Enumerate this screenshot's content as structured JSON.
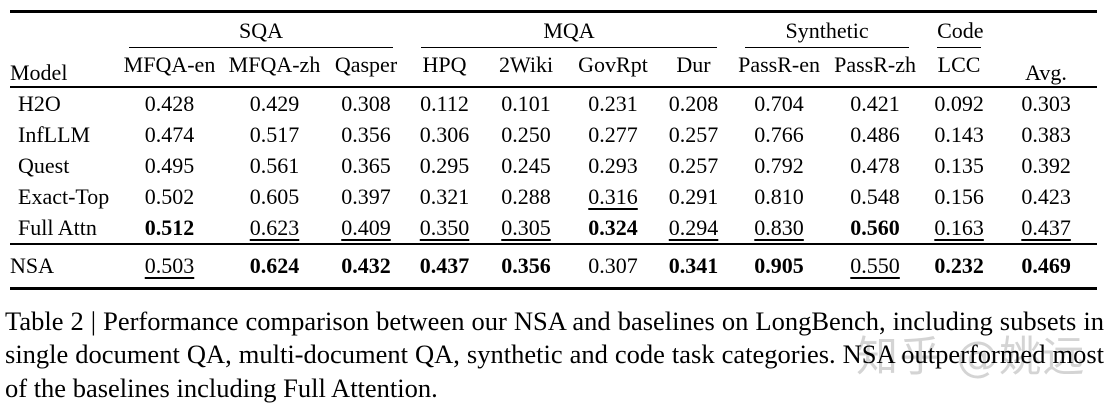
{
  "colors": {
    "text": "#000000",
    "background": "#ffffff",
    "watermark": "#bbbbbb"
  },
  "table": {
    "model_header": "Model",
    "avg_header": "Avg.",
    "groups": [
      {
        "label": "SQA",
        "span": 3
      },
      {
        "label": "MQA",
        "span": 4
      },
      {
        "label": "Synthetic",
        "span": 2
      },
      {
        "label": "Code",
        "span": 1
      }
    ],
    "columns": [
      "MFQA-en",
      "MFQA-zh",
      "Qasper",
      "HPQ",
      "2Wiki",
      "GovRpt",
      "Dur",
      "PassR-en",
      "PassR-zh",
      "LCC"
    ],
    "rows": [
      {
        "model": "H2O",
        "values": [
          "0.428",
          "0.429",
          "0.308",
          "0.112",
          "0.101",
          "0.231",
          "0.208",
          "0.704",
          "0.421",
          "0.092",
          "0.303"
        ],
        "styles": [
          "",
          "",
          "",
          "",
          "",
          "",
          "",
          "",
          "",
          "",
          ""
        ]
      },
      {
        "model": "InfLLM",
        "values": [
          "0.474",
          "0.517",
          "0.356",
          "0.306",
          "0.250",
          "0.277",
          "0.257",
          "0.766",
          "0.486",
          "0.143",
          "0.383"
        ],
        "styles": [
          "",
          "",
          "",
          "",
          "",
          "",
          "",
          "",
          "",
          "",
          ""
        ]
      },
      {
        "model": "Quest",
        "values": [
          "0.495",
          "0.561",
          "0.365",
          "0.295",
          "0.245",
          "0.293",
          "0.257",
          "0.792",
          "0.478",
          "0.135",
          "0.392"
        ],
        "styles": [
          "",
          "",
          "",
          "",
          "",
          "",
          "",
          "",
          "",
          "",
          ""
        ]
      },
      {
        "model": "Exact-Top",
        "values": [
          "0.502",
          "0.605",
          "0.397",
          "0.321",
          "0.288",
          "0.316",
          "0.291",
          "0.810",
          "0.548",
          "0.156",
          "0.423"
        ],
        "styles": [
          "",
          "",
          "",
          "",
          "",
          "u",
          "",
          "",
          "",
          "",
          ""
        ]
      },
      {
        "model": "Full Attn",
        "values": [
          "0.512",
          "0.623",
          "0.409",
          "0.350",
          "0.305",
          "0.324",
          "0.294",
          "0.830",
          "0.560",
          "0.163",
          "0.437"
        ],
        "styles": [
          "b",
          "u",
          "u",
          "u",
          "u",
          "b",
          "u",
          "u",
          "b",
          "u",
          "u"
        ]
      }
    ],
    "nsa_row": {
      "model": "NSA",
      "values": [
        "0.503",
        "0.624",
        "0.432",
        "0.437",
        "0.356",
        "0.307",
        "0.341",
        "0.905",
        "0.550",
        "0.232",
        "0.469"
      ],
      "styles": [
        "u",
        "b",
        "b",
        "b",
        "b",
        "",
        "b",
        "b",
        "u",
        "b",
        "b"
      ]
    }
  },
  "caption": {
    "text": "Table 2 | Performance comparison between our NSA and baselines on LongBench, including subsets in single document QA, multi-document QA, synthetic and code task categories. NSA outperformed most of the baselines including Full Attention."
  },
  "watermark": {
    "text": "知乎 @姚远"
  }
}
